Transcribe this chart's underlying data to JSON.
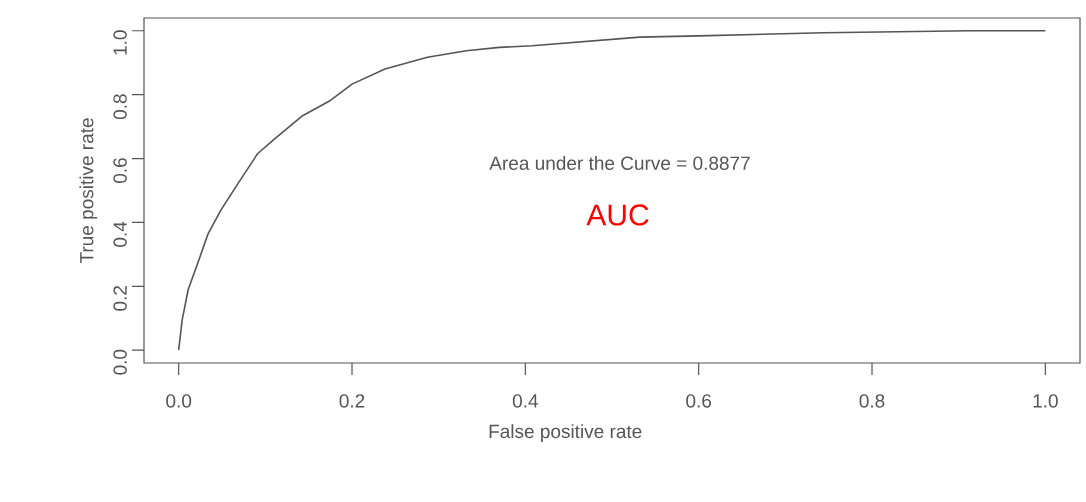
{
  "chart_data": {
    "type": "line",
    "xlabel": "False positive rate",
    "ylabel": "True positive rate",
    "annotations": [
      "Area under the Curve =  0.8877",
      "AUC"
    ],
    "xlim": [
      -0.04,
      1.04
    ],
    "ylim": [
      -0.04,
      1.04
    ],
    "xticks": [
      {
        "value": 0,
        "label": "0.0"
      },
      0.2,
      0.4,
      0.6,
      0.8,
      {
        "value": 1,
        "label": "1.0"
      }
    ],
    "yticks": [
      {
        "value": 0,
        "label": "0.0"
      },
      0.2,
      0.4,
      0.6,
      0.8,
      {
        "value": 1,
        "label": "1.0"
      }
    ],
    "grid": false,
    "legend": false,
    "marker": "none",
    "line_style": "solid",
    "series": [
      {
        "color": "#555555",
        "x": [
          0,
          0.004,
          0.011,
          0.023,
          0.034,
          0.049,
          0.068,
          0.091,
          0.11,
          0.143,
          0.174,
          0.2,
          0.238,
          0.287,
          0.332,
          0.37,
          0.408,
          0.532,
          0.6,
          0.744,
          0.914,
          1.0
        ],
        "values": [
          0,
          0.094,
          0.19,
          0.28,
          0.365,
          0.44,
          0.52,
          0.615,
          0.66,
          0.734,
          0.78,
          0.833,
          0.88,
          0.917,
          0.9375,
          0.948,
          0.953,
          0.98,
          0.984,
          0.994,
          1.0,
          1.0
        ]
      }
    ]
  }
}
